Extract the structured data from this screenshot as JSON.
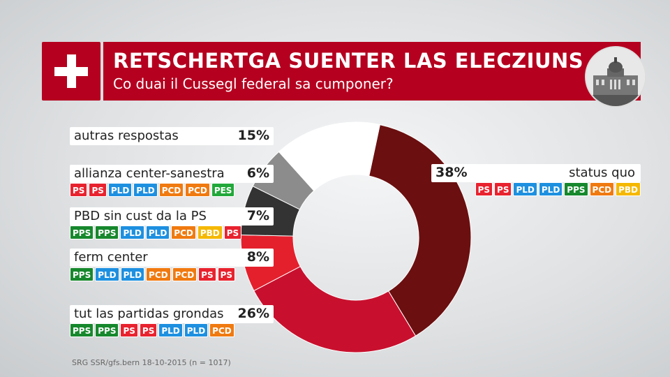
{
  "header": {
    "title": "RETSCHERTGA SUENTER LAS ELECZIUNS",
    "subtitle": "Co duai il Cussegl federal sa cumponer?"
  },
  "source": "SRG SSR/gfs.bern 18-10-2015 (n = 1017)",
  "party_colors": {
    "PS": "#e8232f",
    "PLD": "#1e90e0",
    "PCD": "#f07a10",
    "PPS": "#17882d",
    "PES": "#22a83a",
    "PBD": "#f5b800"
  },
  "chart_data": {
    "type": "pie",
    "title": "RETSCHERTGA SUENTER LAS ELECZIUNS",
    "subtitle": "Co duai il Cussegl federal sa cumponer?",
    "donut": true,
    "slices": [
      {
        "label": "status quo",
        "value": 38,
        "value_label": "38%",
        "color": "#6b0f10",
        "parties": [
          "PS",
          "PS",
          "PLD",
          "PLD",
          "PPS",
          "PCD",
          "PBD"
        ]
      },
      {
        "label": "tut las partidas grondas",
        "value": 26,
        "value_label": "26%",
        "color": "#c8102e",
        "parties": [
          "PPS",
          "PPS",
          "PS",
          "PS",
          "PLD",
          "PLD",
          "PCD"
        ]
      },
      {
        "label": "ferm center",
        "value": 8,
        "value_label": "8%",
        "color": "#e4202d",
        "parties": [
          "PPS",
          "PLD",
          "PLD",
          "PCD",
          "PCD",
          "PS",
          "PS"
        ]
      },
      {
        "label": "PBD sin cust da la PS",
        "value": 7,
        "value_label": "7%",
        "color": "#333333",
        "parties": [
          "PPS",
          "PPS",
          "PLD",
          "PLD",
          "PCD",
          "PBD",
          "PS"
        ]
      },
      {
        "label": "allianza center-sanestra",
        "value": 6,
        "value_label": "6%",
        "color": "#8c8c8c",
        "parties": [
          "PS",
          "PS",
          "PLD",
          "PLD",
          "PCD",
          "PCD",
          "PES"
        ]
      },
      {
        "label": "autras respostas",
        "value": 15,
        "value_label": "15%",
        "color": "#ffffff",
        "parties": []
      }
    ]
  }
}
